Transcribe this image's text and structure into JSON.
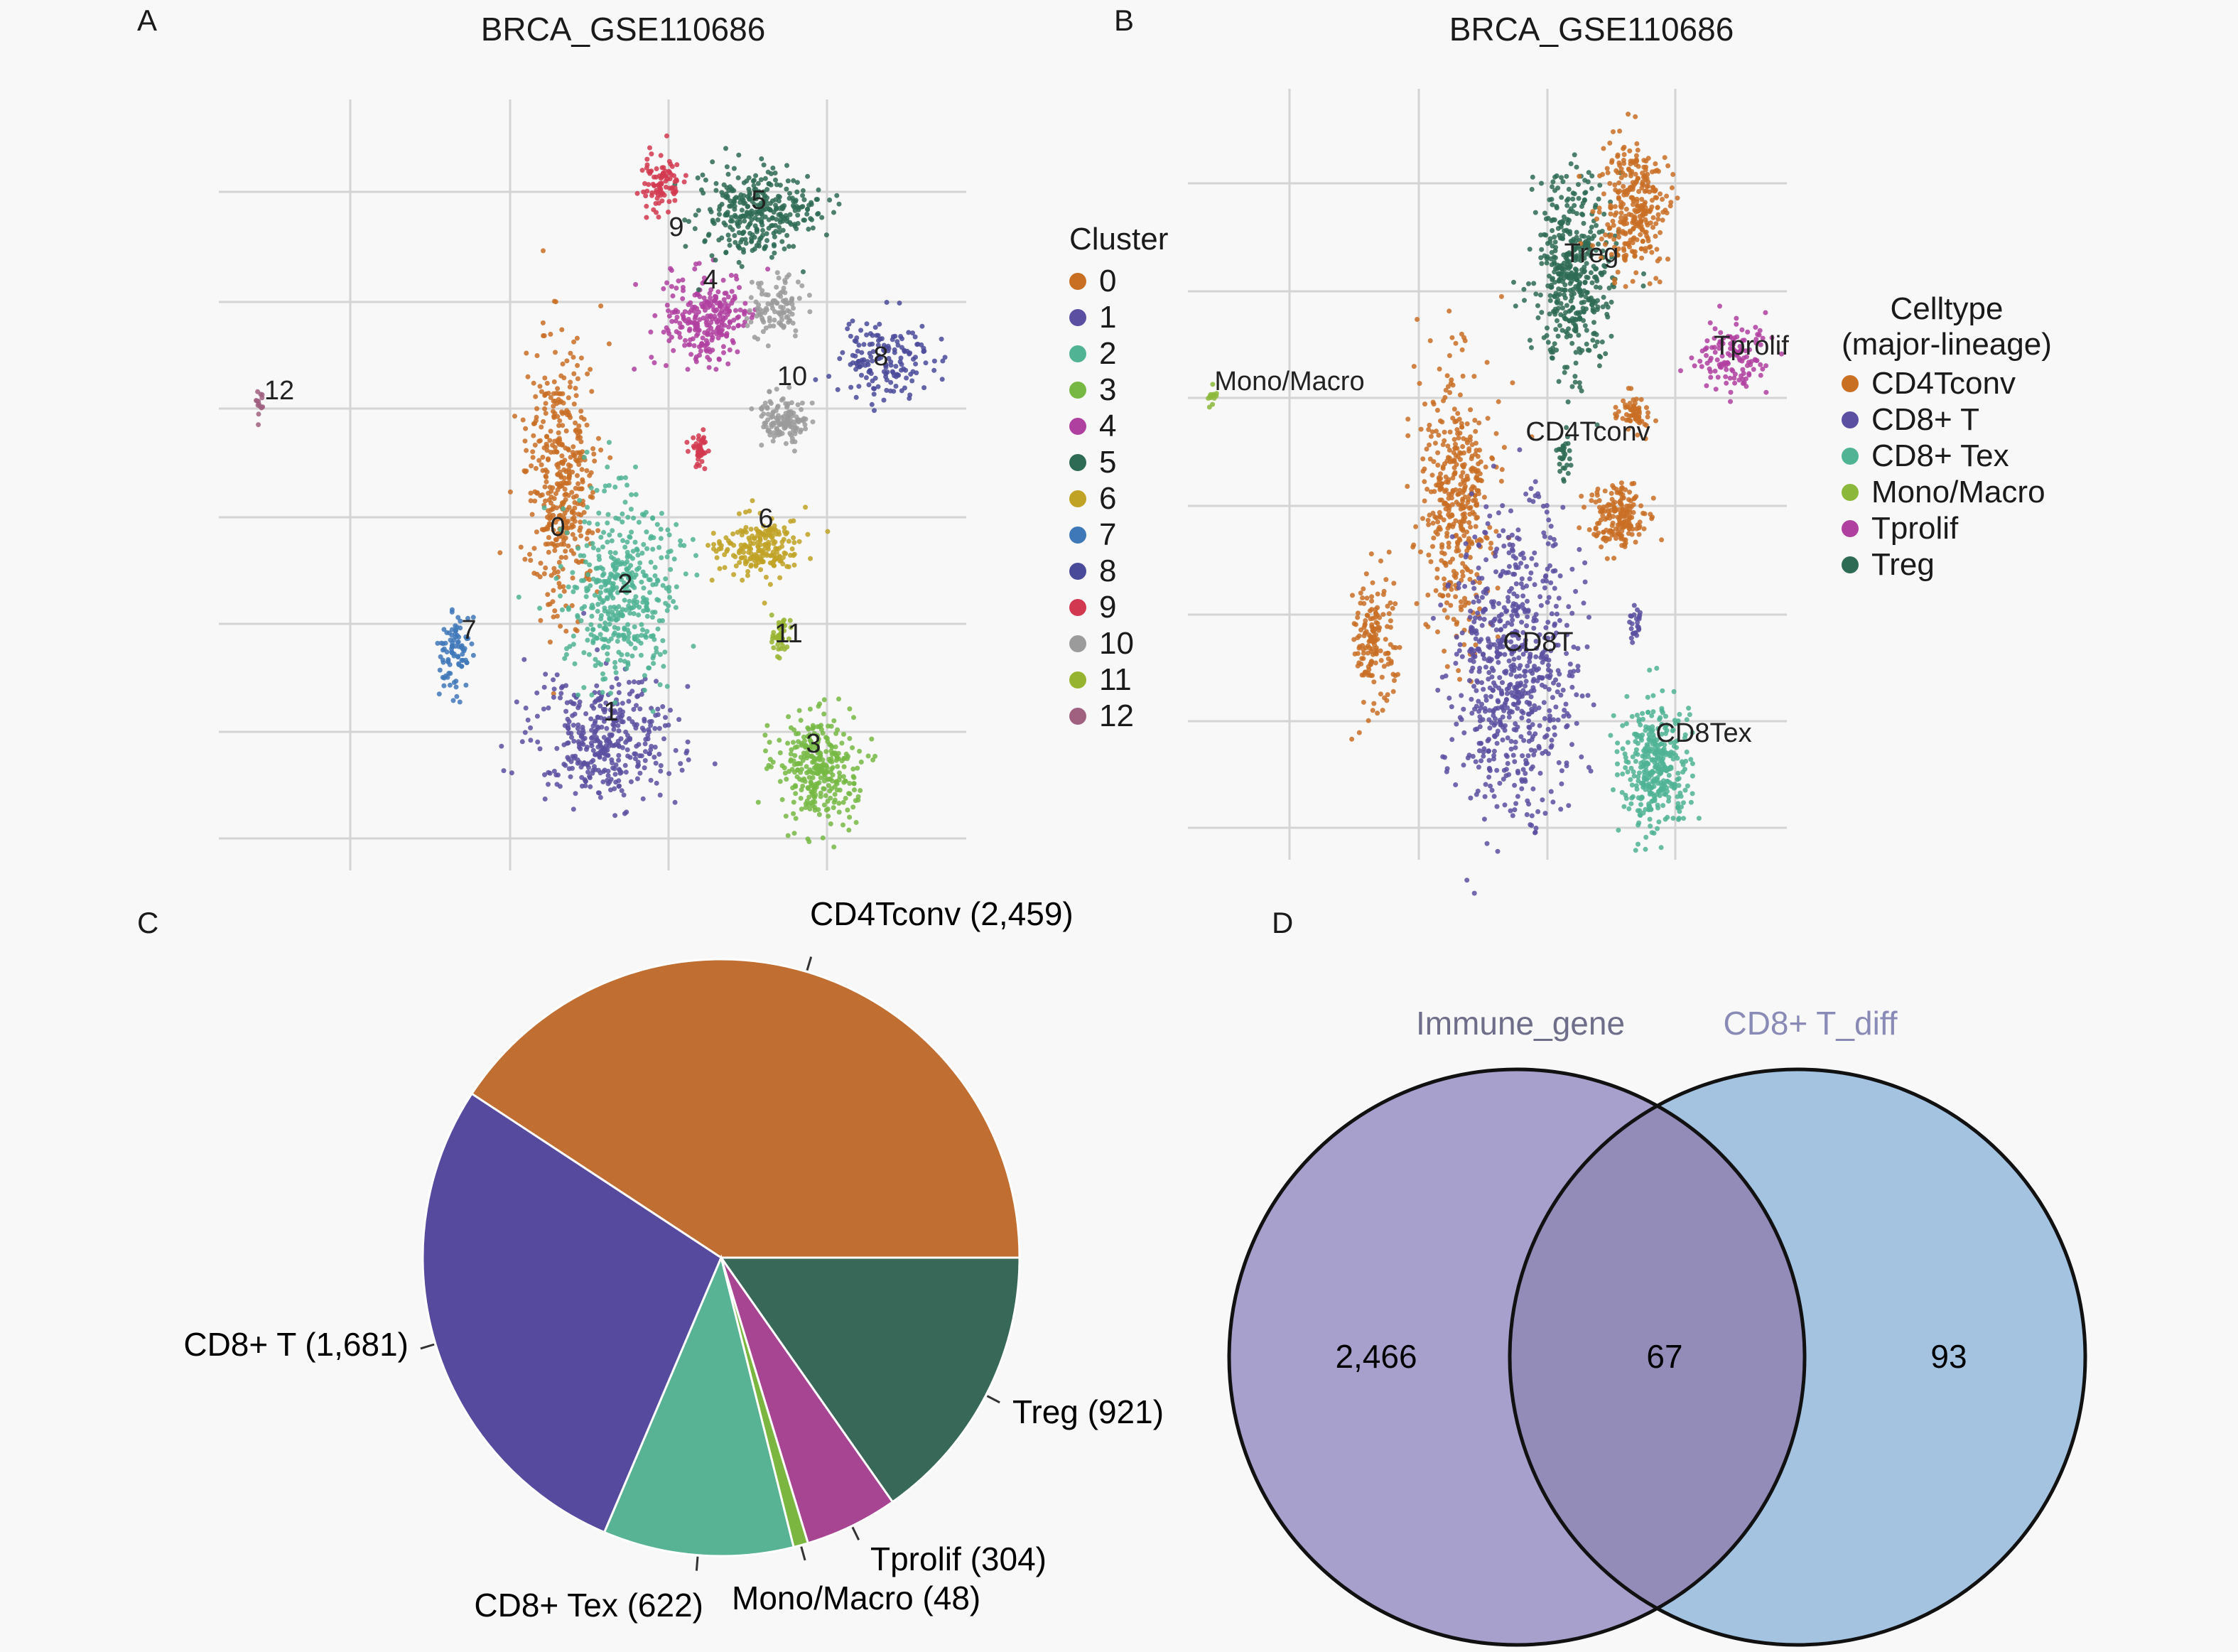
{
  "panels": {
    "a": {
      "letter": "A",
      "title": "BRCA_GSE110686"
    },
    "b": {
      "letter": "B",
      "title": "BRCA_GSE110686"
    },
    "c": {
      "letter": "C"
    },
    "d": {
      "letter": "D"
    }
  },
  "chart_data": [
    {
      "type": "scatter",
      "panel": "A",
      "title": "BRCA_GSE110686",
      "grid": true,
      "legend": {
        "title": "Cluster",
        "placement": "right",
        "entries": [
          {
            "label": "0",
            "color": "#c96f24"
          },
          {
            "label": "1",
            "color": "#5a4fa0"
          },
          {
            "label": "2",
            "color": "#4fb394"
          },
          {
            "label": "3",
            "color": "#76b843"
          },
          {
            "label": "4",
            "color": "#b040a0"
          },
          {
            "label": "5",
            "color": "#2e6b55"
          },
          {
            "label": "6",
            "color": "#c0a225"
          },
          {
            "label": "7",
            "color": "#3f78b8"
          },
          {
            "label": "8",
            "color": "#4a4a9a"
          },
          {
            "label": "9",
            "color": "#d2384f"
          },
          {
            "label": "10",
            "color": "#9b9b9b"
          },
          {
            "label": "11",
            "color": "#97b430"
          },
          {
            "label": "12",
            "color": "#a06080"
          }
        ]
      },
      "annotations": [
        "0",
        "1",
        "2",
        "3",
        "4",
        "5",
        "6",
        "7",
        "8",
        "9",
        "10",
        "11",
        "12"
      ]
    },
    {
      "type": "scatter",
      "panel": "B",
      "title": "BRCA_GSE110686",
      "grid": true,
      "legend": {
        "title_line1": "Celltype",
        "title_line2": "(major-lineage)",
        "placement": "right",
        "entries": [
          {
            "label": "CD4Tconv",
            "color": "#c96f24"
          },
          {
            "label": "CD8+ T",
            "color": "#5a4fa0"
          },
          {
            "label": "CD8+ Tex",
            "color": "#4fb394"
          },
          {
            "label": "Mono/Macro",
            "color": "#8bb83a"
          },
          {
            "label": "Tprolif",
            "color": "#b040a0"
          },
          {
            "label": "Treg",
            "color": "#2e6b55"
          }
        ]
      },
      "annotations": [
        "Treg",
        "Tprolif",
        "Mono/Macro",
        "CD4Tconv",
        "CD8T",
        "CD8Tex"
      ]
    },
    {
      "type": "pie",
      "panel": "C",
      "slices": [
        {
          "label": "CD4Tconv (2,459)",
          "name": "CD4Tconv",
          "value": 2459,
          "color": "#c06e31"
        },
        {
          "label": "Treg (921)",
          "name": "Treg",
          "value": 921,
          "color": "#386857"
        },
        {
          "label": "Tprolif (304)",
          "name": "Tprolif",
          "value": 304,
          "color": "#a84593"
        },
        {
          "label": "Mono/Macro (48)",
          "name": "Mono/Macro",
          "value": 48,
          "color": "#7ab640"
        },
        {
          "label": "CD8+ Tex (622)",
          "name": "CD8+ Tex",
          "value": 622,
          "color": "#58b294"
        },
        {
          "label": "CD8+ T (1,681)",
          "name": "CD8+ T",
          "value": 1681,
          "color": "#564a9e"
        }
      ]
    },
    {
      "type": "venn",
      "panel": "D",
      "sets": [
        {
          "name": "Immune_gene",
          "only": "2,466",
          "color": "#a7a0cc",
          "label_color": "#6e6e8a"
        },
        {
          "name": "CD8+ T_diff",
          "only": "93",
          "color": "#a3c3e1",
          "label_color": "#8a8ab6"
        }
      ],
      "intersection": "67",
      "intersection_color": "#938bb8"
    }
  ]
}
